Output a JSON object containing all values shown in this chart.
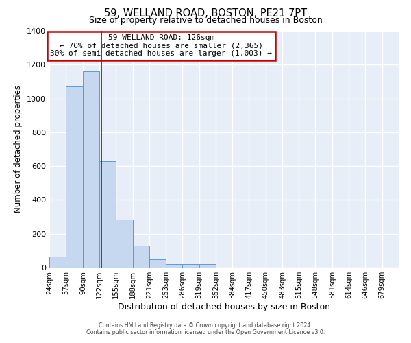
{
  "title": "59, WELLAND ROAD, BOSTON, PE21 7PT",
  "subtitle": "Size of property relative to detached houses in Boston",
  "xlabel": "Distribution of detached houses by size in Boston",
  "ylabel": "Number of detached properties",
  "ylim": [
    0,
    1400
  ],
  "yticks": [
    0,
    200,
    400,
    600,
    800,
    1000,
    1200,
    1400
  ],
  "bar_color": "#c5d8f0",
  "bar_edge_color": "#5b9bd5",
  "property_line_x": 126,
  "property_label": "59 WELLAND ROAD: 126sqm",
  "annotation_line1": "← 70% of detached houses are smaller (2,365)",
  "annotation_line2": "30% of semi-detached houses are larger (1,003) →",
  "annotation_box_edge": "#cc0000",
  "red_line_color": "#cc0000",
  "footer1": "Contains HM Land Registry data © Crown copyright and database right 2024.",
  "footer2": "Contains public sector information licensed under the Open Government Licence v3.0.",
  "bin_edges": [
    24,
    57,
    90,
    122,
    155,
    188,
    221,
    253,
    286,
    319,
    352,
    384,
    417,
    450,
    483,
    515,
    548,
    581,
    614,
    646,
    679
  ],
  "all_bar_values": [
    65,
    1070,
    1160,
    630,
    285,
    130,
    48,
    22,
    22,
    20,
    0,
    0,
    0,
    0,
    0,
    0,
    0,
    0,
    0,
    0
  ],
  "background_color": "#e8eef8",
  "grid_color": "#ffffff"
}
